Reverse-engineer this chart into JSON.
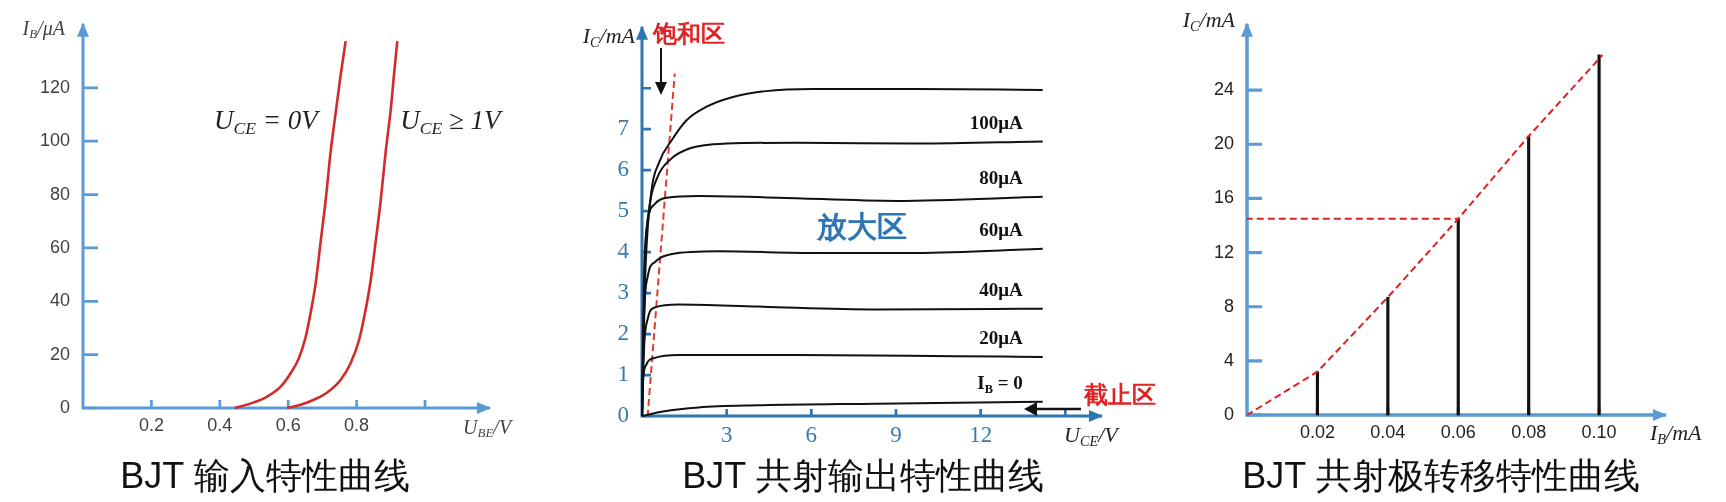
{
  "chart_data": [
    {
      "type": "line",
      "title": "BJT 输入特性曲线",
      "xlabel": "U$_{BE}$/V",
      "ylabel": "I$_{B}$/μA",
      "xlim": [
        0,
        1.19
      ],
      "ylim": [
        0,
        144
      ],
      "xticks": [
        0.2,
        0.4,
        0.6,
        0.8,
        {
          "value": 1,
          "label": null
        }
      ],
      "yticks": [
        0,
        20,
        40,
        60,
        80,
        100,
        120
      ],
      "marker": "none",
      "series": [
        {
          "name": "U$_{CE}$ = 0V",
          "color": "#d42a2a",
          "x": [
            0.444,
            0.5,
            0.539,
            0.578,
            0.607,
            0.631,
            0.651,
            0.665,
            0.68,
            0.695,
            0.709,
            0.724,
            0.739,
            0.753,
            0.768
          ],
          "values": [
            0,
            2.1,
            4.3,
            8,
            13,
            18.6,
            26.6,
            35.3,
            46.5,
            62.5,
            77.3,
            96,
            110.9,
            124.5,
            137.5
          ]
        },
        {
          "name": "U$_{CE}$ ≥ 1V",
          "color": "#d42a2a",
          "x": [
            0.597,
            0.636,
            0.675,
            0.714,
            0.753,
            0.782,
            0.807,
            0.826,
            0.841,
            0.856,
            0.87,
            0.885,
            0.9,
            0.909,
            0.919
          ],
          "values": [
            0,
            1.2,
            3.1,
            5.8,
            10.5,
            16.7,
            25.4,
            36.6,
            47.7,
            62.6,
            77.3,
            96,
            112.1,
            124.5,
            137.5
          ]
        }
      ]
    },
    {
      "type": "line",
      "title": "BJT 共射输出特性曲线",
      "xlabel": "U$_{CE}$/V",
      "ylabel": "I$_{C}$/mA",
      "xlim": [
        0,
        16.3
      ],
      "ylim": [
        0,
        9.5
      ],
      "xticks": [
        3,
        6,
        9,
        12,
        {
          "value": 15,
          "label": null
        }
      ],
      "yticks": [
        0,
        1,
        2,
        3,
        4,
        5,
        6,
        7,
        {
          "value": 8,
          "label": null
        }
      ],
      "marker": "none",
      "annotations": [
        "饱和区",
        "放大区",
        "截止区"
      ],
      "series": [
        {
          "color": "#111111",
          "x": [
            0,
            0.11,
            0.32,
            0.6,
            1.07,
            1.58,
            2.29,
            3.13,
            4.39,
            6.07,
            9.72,
            14.2
          ],
          "values": [
            0,
            3.34,
            5.42,
            6.18,
            6.75,
            7.22,
            7.55,
            7.77,
            7.93,
            7.98,
            7.98,
            7.96
          ]
        },
        {
          "name": "100μA",
          "color": "#111111",
          "x": [
            0,
            0.11,
            0.25,
            0.53,
            1.02,
            1.73,
            2.99,
            5.51,
            9.72,
            14.2
          ],
          "values": [
            0,
            3.81,
            5.04,
            5.8,
            6.27,
            6.54,
            6.65,
            6.67,
            6.65,
            6.7
          ]
        },
        {
          "name": "80μA",
          "color": "#111111",
          "x": [
            0,
            0.07,
            0.18,
            0.46,
            0.88,
            2.01,
            4.81,
            9.02,
            14.2
          ],
          "values": [
            0,
            3.34,
            4.66,
            5.18,
            5.33,
            5.37,
            5.33,
            5.25,
            5.35
          ]
        },
        {
          "name": "60μA",
          "color": "#111111",
          "x": [
            0,
            0.07,
            0.21,
            0.46,
            1.02,
            2.71,
            6.21,
            9.72,
            14.2
          ],
          "values": [
            0,
            2.39,
            3.43,
            3.76,
            3.95,
            4.02,
            3.98,
            3.98,
            4.08
          ]
        },
        {
          "name": "40μA",
          "color": "#111111",
          "x": [
            0,
            0.07,
            0.21,
            0.46,
            1.3,
            4.11,
            8.32,
            14.2
          ],
          "values": [
            0,
            1.63,
            2.39,
            2.65,
            2.72,
            2.67,
            2.6,
            2.62
          ]
        },
        {
          "name": "20μA",
          "color": "#111111",
          "x": [
            0,
            0.04,
            0.15,
            0.46,
            1.3,
            5.51,
            11.1,
            14.2
          ],
          "values": [
            0,
            0.87,
            1.25,
            1.42,
            1.49,
            1.49,
            1.46,
            1.44
          ]
        },
        {
          "name": "I$_{B}$ = 0",
          "color": "#111111",
          "x": [
            0,
            0.74,
            2.01,
            4.11,
            8.32,
            14.2
          ],
          "values": [
            0,
            0.11,
            0.21,
            0.26,
            0.3,
            0.35
          ]
        },
        {
          "color": "#e03c31",
          "line_style": "dashed",
          "x": [
            0.2,
            1.16
          ],
          "values": [
            0,
            8.36
          ]
        }
      ]
    },
    {
      "type": "bar",
      "title": "BJT 共射极转移特性曲线",
      "xlabel": "I$_{B}$/mA",
      "ylabel": "I$_{C}$/mA",
      "xlim": [
        0,
        0.119
      ],
      "ylim": [
        0,
        28.9
      ],
      "xticks": [
        0.02,
        0.04,
        0.06,
        0.08,
        {
          "value": 0.1,
          "label": "0.10"
        }
      ],
      "yticks": [
        0,
        4,
        8,
        12,
        16,
        20,
        24
      ],
      "marker": "none",
      "series": [
        {
          "type": "bar",
          "color": "#111111",
          "x": [
            0.02,
            0.04,
            0.06,
            0.08,
            0.1
          ],
          "values": [
            3.2,
            8.7,
            14.5,
            20.6,
            26.6
          ]
        },
        {
          "type": "line",
          "color": "#e02020",
          "line_style": "dashed",
          "x": [
            0,
            0.02,
            0.04,
            0.06,
            0.08,
            0.101
          ],
          "values": [
            0,
            3.2,
            8.7,
            14.5,
            20.6,
            26.6
          ]
        },
        {
          "type": "line",
          "color": "#e02020",
          "line_style": "dashed",
          "x": [
            0,
            0.06
          ],
          "values": [
            14.5,
            14.5
          ]
        }
      ]
    }
  ]
}
